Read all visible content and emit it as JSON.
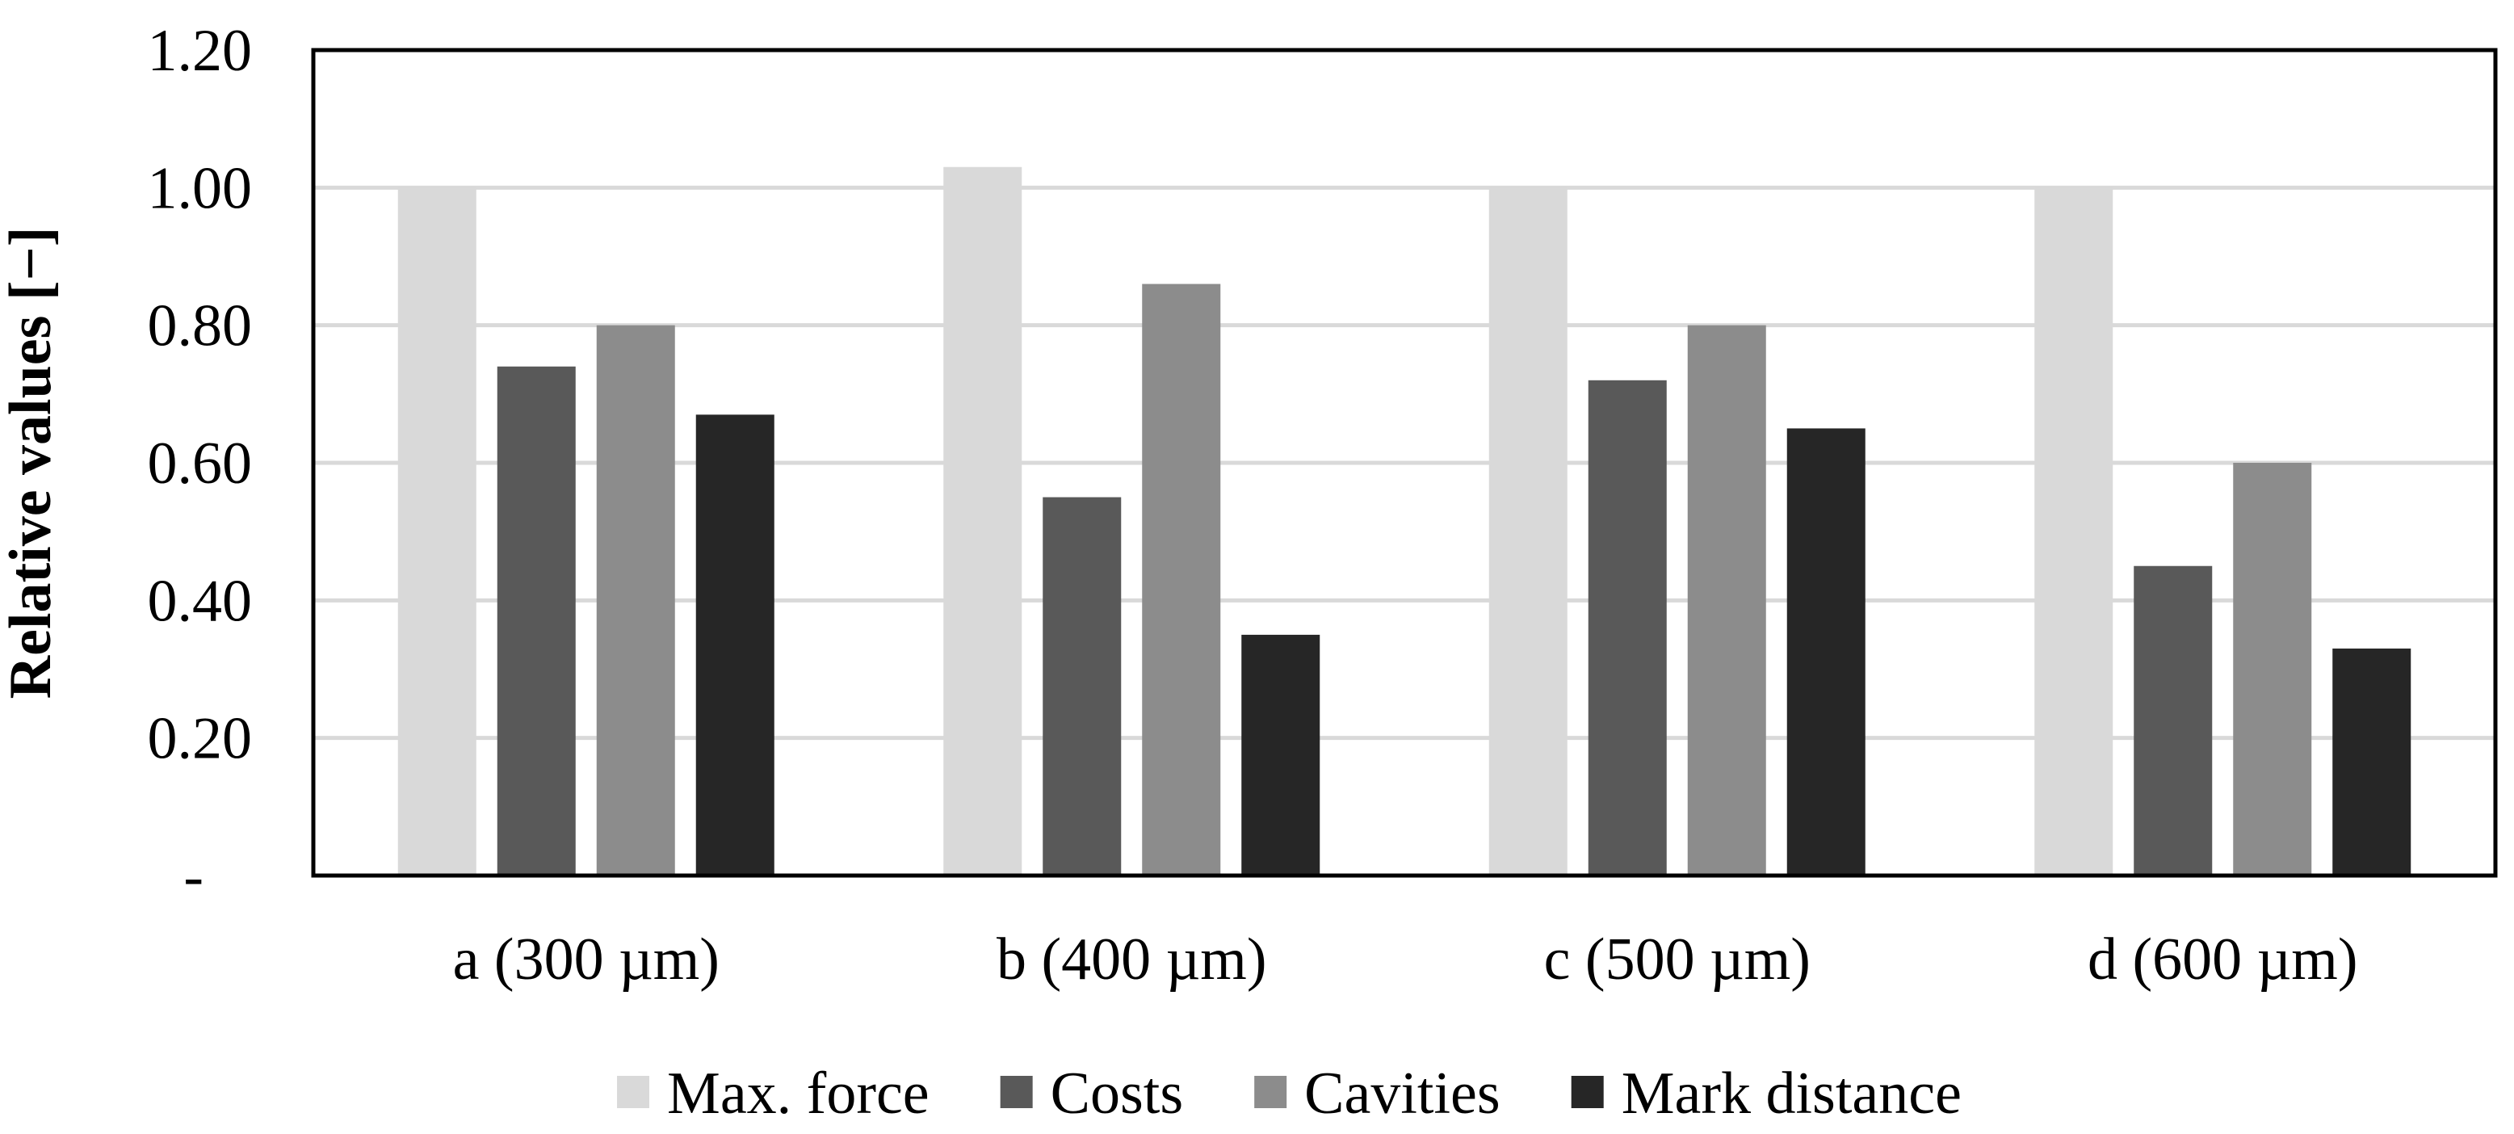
{
  "chart_data": {
    "type": "bar",
    "title": "",
    "xlabel": "",
    "ylabel": "Relative values [−]",
    "ylim": [
      0,
      1.2
    ],
    "yticks": [
      0,
      0.2,
      0.4,
      0.6,
      0.8,
      1.0,
      1.2
    ],
    "ytick_labels": [
      "-",
      "0.20",
      "0.40",
      "0.60",
      "0.80",
      "1.00",
      "1.20"
    ],
    "grid": true,
    "legend_position": "bottom",
    "categories": [
      "a (300 µm)",
      "b (400 µm)",
      "c (500 µm)",
      "d (600 µm)"
    ],
    "series": [
      {
        "name": "Max. force",
        "color": "#d9d9d9",
        "values": [
          1.0,
          1.03,
          1.0,
          1.0
        ]
      },
      {
        "name": "Costs",
        "color": "#595959",
        "values": [
          0.74,
          0.55,
          0.72,
          0.45
        ]
      },
      {
        "name": "Cavities",
        "color": "#8c8c8c",
        "values": [
          0.8,
          0.86,
          0.8,
          0.6
        ]
      },
      {
        "name": "Mark distance",
        "color": "#262626",
        "values": [
          0.67,
          0.35,
          0.65,
          0.33
        ]
      }
    ]
  }
}
